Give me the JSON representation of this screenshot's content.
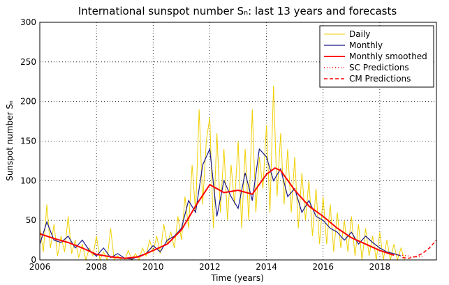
{
  "chart_data": {
    "type": "line",
    "title": "International sunspot number Sₙ: last 13 years and forecasts",
    "xlabel": "Time (years)",
    "ylabel": "Sunspot number Sₙ",
    "xlim": [
      2006,
      2020
    ],
    "xticks": [
      2006,
      2008,
      2010,
      2012,
      2014,
      2016,
      2018
    ],
    "ylim": [
      0,
      300
    ],
    "yticks": [
      0,
      50,
      100,
      150,
      200,
      250,
      300
    ],
    "grid": true,
    "legend": "upper right",
    "series": [
      {
        "name": "Daily",
        "color": "#f0d000",
        "width": 1,
        "dash": "",
        "x": [
          2006,
          2006.125,
          2006.25,
          2006.375,
          2006.5,
          2006.625,
          2006.75,
          2006.875,
          2007,
          2007.125,
          2007.25,
          2007.375,
          2007.5,
          2007.625,
          2007.75,
          2007.875,
          2008,
          2008.125,
          2008.25,
          2008.375,
          2008.5,
          2008.625,
          2008.75,
          2008.875,
          2009,
          2009.125,
          2009.25,
          2009.375,
          2009.5,
          2009.625,
          2009.75,
          2009.875,
          2010,
          2010.125,
          2010.25,
          2010.375,
          2010.5,
          2010.625,
          2010.75,
          2010.875,
          2011,
          2011.125,
          2011.25,
          2011.375,
          2011.5,
          2011.625,
          2011.75,
          2011.875,
          2012,
          2012.125,
          2012.25,
          2012.375,
          2012.5,
          2012.625,
          2012.75,
          2012.875,
          2013,
          2013.125,
          2013.25,
          2013.375,
          2013.5,
          2013.625,
          2013.75,
          2013.875,
          2014,
          2014.125,
          2014.25,
          2014.375,
          2014.5,
          2014.625,
          2014.75,
          2014.875,
          2015,
          2015.125,
          2015.25,
          2015.375,
          2015.5,
          2015.625,
          2015.75,
          2015.875,
          2016,
          2016.125,
          2016.25,
          2016.375,
          2016.5,
          2016.625,
          2016.75,
          2016.875,
          2017,
          2017.125,
          2017.25,
          2017.375,
          2017.5,
          2017.625,
          2017.75,
          2017.875,
          2018,
          2018.125,
          2018.25,
          2018.375,
          2018.5,
          2018.625,
          2018.75,
          2018.875
        ],
        "values": [
          40,
          10,
          70,
          15,
          45,
          5,
          30,
          10,
          55,
          8,
          25,
          3,
          20,
          0,
          15,
          5,
          30,
          0,
          10,
          0,
          40,
          0,
          5,
          0,
          0,
          12,
          0,
          8,
          0,
          15,
          5,
          25,
          10,
          30,
          8,
          45,
          20,
          35,
          15,
          55,
          25,
          80,
          40,
          120,
          60,
          190,
          70,
          150,
          180,
          40,
          160,
          60,
          140,
          50,
          120,
          70,
          150,
          40,
          140,
          50,
          190,
          60,
          130,
          90,
          170,
          60,
          220,
          80,
          160,
          70,
          140,
          60,
          130,
          40,
          110,
          50,
          100,
          30,
          90,
          20,
          80,
          20,
          70,
          10,
          60,
          15,
          50,
          10,
          55,
          5,
          45,
          0,
          40,
          5,
          30,
          0,
          35,
          0,
          25,
          0,
          20,
          0,
          15,
          0
        ]
      },
      {
        "name": "Monthly",
        "color": "#1a1a8c",
        "width": 1.2,
        "dash": "",
        "x": [
          2006,
          2006.25,
          2006.5,
          2006.75,
          2007,
          2007.25,
          2007.5,
          2007.75,
          2008,
          2008.25,
          2008.5,
          2008.75,
          2009,
          2009.25,
          2009.5,
          2009.75,
          2010,
          2010.25,
          2010.5,
          2010.75,
          2011,
          2011.25,
          2011.5,
          2011.75,
          2012,
          2012.25,
          2012.5,
          2012.75,
          2013,
          2013.25,
          2013.5,
          2013.75,
          2014,
          2014.25,
          2014.5,
          2014.75,
          2015,
          2015.25,
          2015.5,
          2015.75,
          2016,
          2016.25,
          2016.5,
          2016.75,
          2017,
          2017.25,
          2017.5,
          2017.75,
          2018,
          2018.25,
          2018.5,
          2018.75
        ],
        "values": [
          20,
          48,
          25,
          22,
          30,
          15,
          25,
          12,
          5,
          15,
          3,
          8,
          2,
          1,
          5,
          8,
          18,
          10,
          25,
          30,
          40,
          75,
          60,
          120,
          140,
          55,
          100,
          80,
          65,
          110,
          75,
          140,
          130,
          100,
          115,
          80,
          90,
          60,
          75,
          55,
          50,
          40,
          35,
          25,
          35,
          20,
          30,
          22,
          15,
          10,
          8,
          5
        ]
      },
      {
        "name": "Monthly smoothed",
        "color": "#ff0000",
        "width": 2,
        "dash": "",
        "x": [
          2006,
          2006.5,
          2007,
          2007.5,
          2008,
          2008.5,
          2009,
          2009.5,
          2010,
          2010.5,
          2011,
          2011.5,
          2012,
          2012.5,
          2013,
          2013.5,
          2014,
          2014.3,
          2014.5,
          2015,
          2015.5,
          2016,
          2016.5,
          2017,
          2017.5,
          2018,
          2018.5
        ],
        "values": [
          33,
          27,
          22,
          15,
          7,
          4,
          2,
          4,
          12,
          20,
          38,
          68,
          95,
          85,
          88,
          83,
          108,
          116,
          113,
          88,
          68,
          55,
          40,
          28,
          20,
          12,
          6
        ]
      },
      {
        "name": "SC Predictions",
        "color": "#ff0000",
        "width": 1.5,
        "dash": "1 3",
        "x": [
          2018.5,
          2018.75,
          2019,
          2019.25,
          2019.5
        ],
        "values": [
          7,
          6,
          5,
          4,
          4
        ]
      },
      {
        "name": "CM Predictions",
        "color": "#ff0000",
        "width": 1.5,
        "dash": "5 3",
        "x": [
          2018.8,
          2019,
          2019.25,
          2019.5,
          2019.75,
          2020
        ],
        "values": [
          3,
          2,
          4,
          8,
          15,
          25
        ]
      }
    ]
  }
}
